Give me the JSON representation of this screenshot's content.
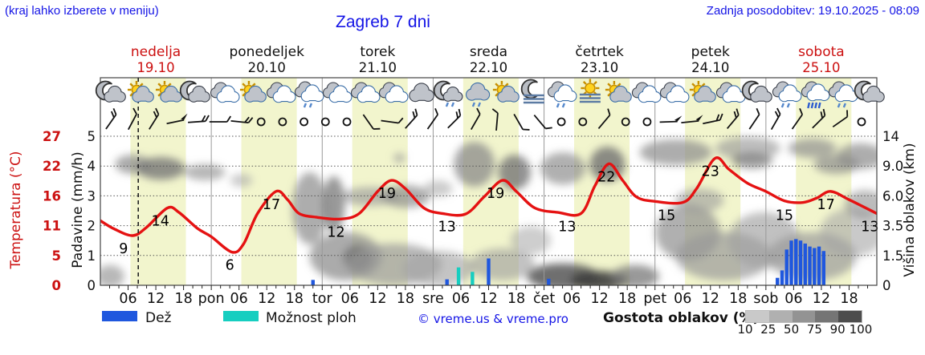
{
  "header": {
    "hint": "(kraj lahko izberete v meniju)",
    "title": "Zagreb 7 dni",
    "updated": "Zadnja posodobitev: 19.10.2025 - 08:09"
  },
  "days": [
    {
      "name": "nedelja",
      "date": "19.10",
      "accent": true
    },
    {
      "name": "ponedeljek",
      "date": "20.10",
      "accent": false
    },
    {
      "name": "torek",
      "date": "21.10",
      "accent": false
    },
    {
      "name": "sreda",
      "date": "22.10",
      "accent": false
    },
    {
      "name": "četrtek",
      "date": "23.10",
      "accent": false
    },
    {
      "name": "petek",
      "date": "24.10",
      "accent": false
    },
    {
      "name": "sobota",
      "date": "25.10",
      "accent": true
    }
  ],
  "axes": {
    "temp_title": "Temperatura (°C)",
    "temp_ticks": [
      "27",
      "22",
      "16",
      "11",
      "5",
      "0"
    ],
    "precip_title": "Padavine (mm/h)",
    "precip_ticks": [
      "5",
      "4",
      "3",
      "2",
      "1",
      "0"
    ],
    "cloud_title": "Višina oblakov (km)",
    "cloud_ticks": [
      "14",
      "9.0",
      "6.0",
      "3.5",
      "1.5",
      "0"
    ],
    "time_labels": [
      [
        6,
        "06"
      ],
      [
        12,
        "12"
      ],
      [
        18,
        "18"
      ],
      [
        24,
        "pon"
      ],
      [
        30,
        "06"
      ],
      [
        36,
        "12"
      ],
      [
        42,
        "18"
      ],
      [
        48,
        "tor"
      ],
      [
        54,
        "06"
      ],
      [
        60,
        "12"
      ],
      [
        66,
        "18"
      ],
      [
        72,
        "sre"
      ],
      [
        78,
        "06"
      ],
      [
        84,
        "12"
      ],
      [
        90,
        "18"
      ],
      [
        96,
        "čet"
      ],
      [
        102,
        "06"
      ],
      [
        108,
        "12"
      ],
      [
        114,
        "18"
      ],
      [
        120,
        "pet"
      ],
      [
        126,
        "06"
      ],
      [
        132,
        "12"
      ],
      [
        138,
        "18"
      ],
      [
        144,
        "sob"
      ],
      [
        150,
        "06"
      ],
      [
        156,
        "12"
      ],
      [
        162,
        "18"
      ]
    ]
  },
  "legend": {
    "rain": "Dež",
    "showers": "Možnost ploh",
    "copyright": "© vreme.us & vreme.pro",
    "density": "Gostota oblakov (%)",
    "density_ticks": [
      "10",
      "25",
      "50",
      "75",
      "90",
      "100"
    ],
    "density_colors": [
      "#c9c9c9",
      "#b0b0b0",
      "#939393",
      "#757575",
      "#4d4d4d"
    ],
    "rain_color": "#1f57de",
    "shower_color": "#16cec0"
  },
  "chart_data": {
    "type": "meteogram",
    "x_unit": "hours from 19.10 00:00 (0-168, 7 days)",
    "now_hour": 8.2,
    "day_band": {
      "start_hour": 6.5,
      "end_hour": 18.5,
      "color": "#f2f5cd"
    },
    "temperature": {
      "color": "#e51212",
      "points": [
        [
          0,
          11.7
        ],
        [
          3,
          10.2
        ],
        [
          7,
          9
        ],
        [
          10,
          10.5
        ],
        [
          14.5,
          14
        ],
        [
          17,
          13.2
        ],
        [
          21,
          10.3
        ],
        [
          24,
          8.8
        ],
        [
          28.5,
          6
        ],
        [
          31,
          7.5
        ],
        [
          34,
          13
        ],
        [
          38,
          17
        ],
        [
          40.5,
          15.5
        ],
        [
          43,
          13
        ],
        [
          47,
          12.3
        ],
        [
          52,
          12
        ],
        [
          56,
          13
        ],
        [
          60,
          17
        ],
        [
          63,
          19
        ],
        [
          66,
          17.5
        ],
        [
          70,
          14
        ],
        [
          74,
          13
        ],
        [
          79,
          12.9
        ],
        [
          83,
          16
        ],
        [
          87,
          19
        ],
        [
          90,
          17
        ],
        [
          94,
          14
        ],
        [
          99,
          13.2
        ],
        [
          104,
          13
        ],
        [
          107,
          18
        ],
        [
          110,
          22
        ],
        [
          113,
          19
        ],
        [
          116,
          16
        ],
        [
          120,
          15.2
        ],
        [
          126,
          15
        ],
        [
          129,
          17.5
        ],
        [
          133,
          23
        ],
        [
          136,
          21
        ],
        [
          140,
          18.5
        ],
        [
          144,
          17
        ],
        [
          148,
          15.3
        ],
        [
          152,
          15
        ],
        [
          155,
          15.8
        ],
        [
          158,
          17
        ],
        [
          162,
          15.5
        ],
        [
          168,
          13
        ]
      ]
    },
    "temp_labels": [
      [
        5,
        9
      ],
      [
        13,
        14
      ],
      [
        28,
        6
      ],
      [
        37,
        17
      ],
      [
        51,
        12
      ],
      [
        62,
        19
      ],
      [
        75,
        13
      ],
      [
        85.5,
        19
      ],
      [
        101,
        13
      ],
      [
        109.5,
        22
      ],
      [
        122.5,
        15
      ],
      [
        132,
        23
      ],
      [
        148,
        15
      ],
      [
        157,
        17
      ],
      [
        166.5,
        13
      ]
    ],
    "rain_bars": [
      [
        46,
        0.18,
        "rain"
      ],
      [
        75,
        0.2,
        "rain"
      ],
      [
        77.5,
        0.6,
        "shower"
      ],
      [
        80.5,
        0.45,
        "shower"
      ],
      [
        84,
        0.9,
        "rain"
      ],
      [
        97,
        0.22,
        "rain"
      ],
      [
        146.5,
        0.25,
        "rain"
      ],
      [
        147.5,
        0.5,
        "rain"
      ],
      [
        148.5,
        1.2,
        "rain"
      ],
      [
        149.5,
        1.5,
        "rain"
      ],
      [
        150.5,
        1.55,
        "rain"
      ],
      [
        151.5,
        1.5,
        "rain"
      ],
      [
        152.5,
        1.4,
        "rain"
      ],
      [
        153.5,
        1.3,
        "rain"
      ],
      [
        154.5,
        1.25,
        "rain"
      ],
      [
        155.5,
        1.3,
        "rain"
      ],
      [
        156.5,
        1.15,
        "rain"
      ]
    ],
    "icons": [
      "moon-cloud",
      "sun-cloud",
      "sun-cloud",
      "moon-cloud",
      "clouds",
      "sun-cloud",
      "clouds",
      "clouds-drizzle",
      "clouds",
      "clouds",
      "clouds",
      "cloud-gray",
      "moon-drizzle",
      "cloud-drizzle",
      "sun-cloud",
      "moon-fog",
      "clouds-drizzle",
      "sun-fog",
      "sun-cloud",
      "clouds",
      "clouds",
      "sun-cloud",
      "clouds",
      "moon-cloud",
      "clouds-drizzle",
      "cloud-rain",
      "clouds-drizzle",
      "moon-cloud"
    ],
    "wind": [
      [
        "b2",
        -55
      ],
      [
        "b1",
        -62
      ],
      [
        "b2",
        -58
      ],
      [
        "f",
        -12
      ],
      [
        "b2",
        -4
      ],
      [
        "b1",
        0
      ],
      [
        "b2",
        6
      ],
      [
        "c",
        0
      ],
      [
        "c",
        0
      ],
      [
        "c",
        0
      ],
      [
        "c",
        0
      ],
      [
        "c",
        0
      ],
      [
        "b1",
        55
      ],
      [
        "b1",
        8
      ],
      [
        "b2",
        -48
      ],
      [
        "b1",
        -55
      ],
      [
        "b2",
        -45
      ],
      [
        "b1",
        -60
      ],
      [
        "b1",
        -85
      ],
      [
        "b1",
        60
      ],
      [
        "b1",
        50
      ],
      [
        "c",
        0
      ],
      [
        "c",
        0
      ],
      [
        "b1",
        -50
      ],
      [
        "c",
        0
      ],
      [
        "c",
        0
      ],
      [
        "f",
        -2
      ],
      [
        "f",
        -6
      ],
      [
        "b2",
        -12
      ],
      [
        "b2",
        -50
      ],
      [
        "b1",
        -56
      ],
      [
        "b2",
        -60
      ],
      [
        "b1",
        -55
      ],
      [
        "b2",
        -45
      ],
      [
        "b1",
        -35
      ],
      [
        "c",
        0
      ]
    ],
    "cloud_blobs_format": "[hour, level(0-5), r_hours, r_level, shade, opacity]",
    "cloud_blobs": [
      [
        2.1,
        0.3,
        3.1,
        0.38,
        "#9a9a9a",
        0.7
      ],
      [
        7.0,
        4.06,
        3.8,
        0.32,
        "#8f8f8f",
        0.75
      ],
      [
        13.1,
        3.92,
        5.2,
        0.38,
        "#777777",
        0.8
      ],
      [
        22.6,
        3.79,
        4.4,
        0.27,
        "#999999",
        0.7
      ],
      [
        30.5,
        3.52,
        2.4,
        0.22,
        "#aaaaaa",
        0.6
      ],
      [
        45.3,
        2.58,
        3.8,
        1.21,
        "#8a8a8a",
        0.7
      ],
      [
        50.5,
        2.72,
        2.4,
        0.94,
        "#777777",
        0.75
      ],
      [
        58.3,
        2.98,
        6.1,
        0.32,
        "#999999",
        0.65
      ],
      [
        66.1,
        2.98,
        5.2,
        0.38,
        "#8a8a8a",
        0.7
      ],
      [
        64.7,
        4.27,
        1.2,
        0.16,
        "#999999",
        0.7
      ],
      [
        73.1,
        3.25,
        3.1,
        0.27,
        "#aaaaaa",
        0.6
      ],
      [
        53.1,
        0.97,
        7.8,
        0.81,
        "#8f8f8f",
        0.75
      ],
      [
        55.7,
        0.91,
        3.1,
        0.43,
        "#6a6a6a",
        0.8
      ],
      [
        63.5,
        0.7,
        10.4,
        0.7,
        "#999999",
        0.7
      ],
      [
        73.1,
        0.56,
        7.8,
        0.59,
        "#a5a5a5",
        0.65
      ],
      [
        80.9,
        4.06,
        4.4,
        0.75,
        "#8a8a8a",
        0.75
      ],
      [
        89.6,
        3.79,
        3.5,
        0.59,
        "#777777",
        0.8
      ],
      [
        100.1,
        3.92,
        4.9,
        0.54,
        "#8f8f8f",
        0.7
      ],
      [
        109.7,
        4.06,
        3.8,
        0.59,
        "#6f6f6f",
        0.8
      ],
      [
        100.1,
        0.3,
        7.8,
        0.43,
        "#555555",
        0.85
      ],
      [
        107.9,
        0.16,
        6.1,
        0.32,
        "#3f3f3f",
        0.9
      ],
      [
        115.7,
        0.3,
        5.2,
        0.38,
        "#777777",
        0.75
      ],
      [
        124.5,
        4.46,
        7.8,
        0.43,
        "#8a8a8a",
        0.7
      ],
      [
        140.1,
        4.6,
        7.0,
        0.38,
        "#999999",
        0.65
      ],
      [
        154.0,
        4.6,
        5.2,
        0.32,
        "#8f8f8f",
        0.7
      ],
      [
        164.5,
        4.33,
        5.2,
        0.43,
        "#8a8a8a",
        0.7
      ],
      [
        127.1,
        1.77,
        7.0,
        0.94,
        "#8f8f8f",
        0.7
      ],
      [
        134.9,
        0.97,
        10.4,
        0.81,
        "#999999",
        0.7
      ],
      [
        143.6,
        1.51,
        7.8,
        0.94,
        "#a0a0a0",
        0.65
      ],
      [
        154.0,
        0.97,
        9.6,
        0.81,
        "#9a9a9a",
        0.7
      ],
      [
        162.7,
        1.77,
        7.0,
        0.81,
        "#a5a5a5",
        0.6
      ],
      [
        165.4,
        2.72,
        4.4,
        0.48,
        "#8f8f8f",
        0.6
      ],
      [
        129.7,
        2.85,
        5.2,
        0.4,
        "#999999",
        0.6
      ],
      [
        141.0,
        4.19,
        4.4,
        0.27,
        "#777777",
        0.7
      ],
      [
        159.3,
        4.06,
        4.9,
        0.32,
        "#8a8a8a",
        0.7
      ],
      [
        87.0,
        0.7,
        7.0,
        0.54,
        "#9a9a9a",
        0.6
      ],
      [
        93.1,
        1.51,
        4.4,
        0.48,
        "#a5a5a5",
        0.55
      ]
    ]
  }
}
